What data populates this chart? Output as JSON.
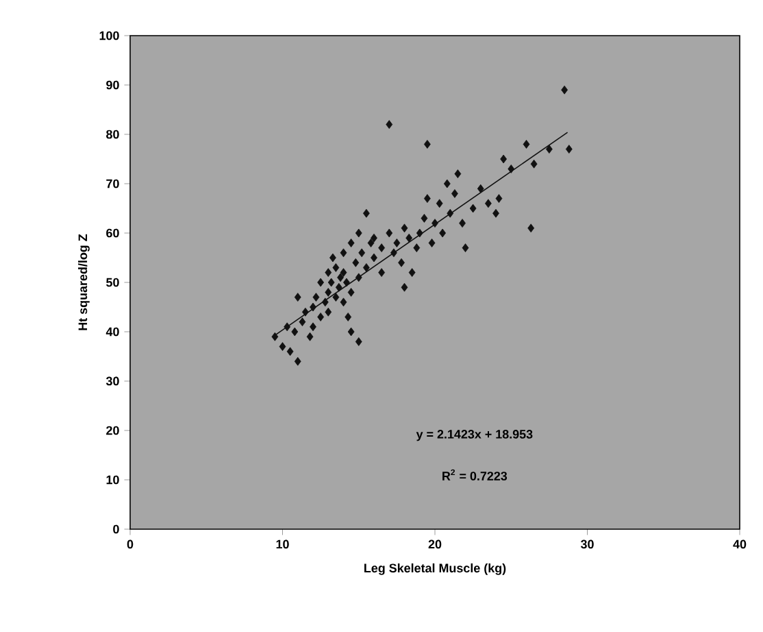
{
  "chart_data": {
    "type": "scatter",
    "xlabel": "Leg Skeletal Muscle (kg)",
    "ylabel": "Ht squared/log Z",
    "xlim": [
      0,
      40
    ],
    "xticks": [
      0,
      10,
      20,
      30,
      40
    ],
    "ylim": [
      0,
      100
    ],
    "yticks": [
      0,
      10,
      20,
      30,
      40,
      50,
      60,
      70,
      80,
      90,
      100
    ],
    "annotations": [
      "y = 2.1423x + 18.953",
      "R$^{2}$ = 0.7223"
    ],
    "series": [
      {
        "color": "#111111",
        "marker": "diamond",
        "x": [
          9.5,
          10,
          10.3,
          10.5,
          10.8,
          11,
          11,
          11.3,
          11.5,
          11.8,
          12,
          12,
          12.2,
          12.5,
          12.5,
          12.8,
          13,
          13,
          13,
          13.2,
          13.3,
          13.5,
          13.5,
          13.7,
          13.8,
          14,
          14,
          14,
          14.2,
          14.3,
          14.5,
          14.5,
          14.5,
          14.8,
          15,
          15,
          15,
          15.2,
          15.5,
          15.5,
          15.8,
          16,
          16,
          16.5,
          16.5,
          17,
          17,
          17.3,
          17.5,
          17.8,
          18,
          18,
          18.3,
          18.5,
          18.8,
          19,
          19.3,
          19.5,
          19.5,
          19.8,
          20,
          20.3,
          20.5,
          20.8,
          21,
          21.3,
          21.5,
          21.8,
          22,
          22.5,
          23,
          23.5,
          24,
          24.2,
          24.5,
          25,
          26,
          26.3,
          26.5,
          27.5,
          28.5,
          28.8
        ],
        "values": [
          39,
          37,
          41,
          36,
          40,
          34,
          47,
          42,
          44,
          39,
          45,
          41,
          47,
          43,
          50,
          46,
          48,
          52,
          44,
          50,
          55,
          47,
          53,
          49,
          51,
          56,
          46,
          52,
          50,
          43,
          58,
          48,
          40,
          54,
          38,
          60,
          51,
          56,
          64,
          53,
          58,
          55,
          59,
          57,
          52,
          60,
          82,
          56,
          58,
          54,
          49,
          61,
          59,
          52,
          57,
          60,
          63,
          78,
          67,
          58,
          62,
          66,
          60,
          70,
          64,
          68,
          72,
          62,
          57,
          65,
          69,
          66,
          64,
          67,
          75,
          73,
          78,
          61,
          74,
          77,
          89,
          77
        ]
      },
      {
        "type": "line",
        "color": "#111111",
        "marker": "none",
        "x": [
          9.5,
          28.7
        ],
        "values": [
          39.3,
          80.4
        ]
      }
    ]
  }
}
